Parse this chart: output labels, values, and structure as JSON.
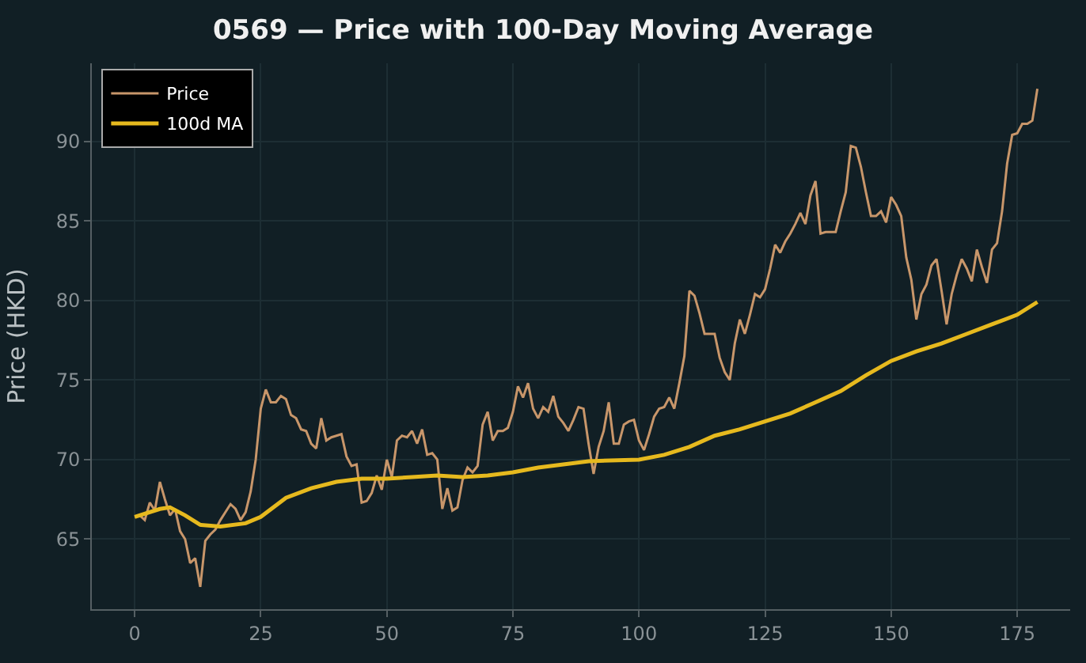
{
  "chart_data": {
    "type": "line",
    "title": "0569 — Price with 100-Day Moving Average",
    "ylabel": "Price (HKD)",
    "xlim": [
      -8.5,
      185.5
    ],
    "xticks": [
      0,
      25,
      50,
      75,
      100,
      125,
      150,
      175
    ],
    "ylim": [
      60.6,
      94.9
    ],
    "yticks": [
      65,
      70,
      75,
      80,
      85,
      90
    ],
    "grid": true,
    "legend": "top left",
    "marker": "none",
    "line_style": "solid",
    "series": [
      {
        "name": "Price",
        "color": "#c8966a",
        "x": [
          0,
          1,
          2,
          3,
          4,
          5,
          6,
          7,
          8,
          9,
          10,
          11,
          12,
          13,
          14,
          15,
          16,
          17,
          18,
          19,
          20,
          21,
          22,
          23,
          24,
          25,
          26,
          27,
          28,
          29,
          30,
          31,
          32,
          33,
          34,
          35,
          36,
          37,
          38,
          39,
          40,
          41,
          42,
          43,
          44,
          45,
          46,
          47,
          48,
          49,
          50,
          51,
          52,
          53,
          54,
          55,
          56,
          57,
          58,
          59,
          60,
          61,
          62,
          63,
          64,
          65,
          66,
          67,
          68,
          69,
          70,
          71,
          72,
          73,
          74,
          75,
          76,
          77,
          78,
          79,
          80,
          81,
          82,
          83,
          84,
          85,
          86,
          87,
          88,
          89,
          90,
          91,
          92,
          93,
          94,
          95,
          96,
          97,
          98,
          99,
          100,
          101,
          102,
          103,
          104,
          105,
          106,
          107,
          108,
          109,
          110,
          111,
          112,
          113,
          114,
          115,
          116,
          117,
          118,
          119,
          120,
          121,
          122,
          123,
          124,
          125,
          126,
          127,
          128,
          129,
          130,
          131,
          132,
          133,
          134,
          135,
          136,
          137,
          138,
          139,
          140,
          141,
          142,
          143,
          144,
          145,
          146,
          147,
          148,
          149,
          150,
          151,
          152,
          153,
          154,
          155,
          156,
          157,
          158,
          159,
          160,
          161,
          162,
          163,
          164,
          165,
          166,
          167,
          168,
          169,
          170,
          171,
          172,
          173,
          174,
          175,
          176,
          177,
          178,
          179
        ],
        "values": [
          66.4,
          66.5,
          66.2,
          67.3,
          66.8,
          68.6,
          67.5,
          66.5,
          66.9,
          65.5,
          65.0,
          63.5,
          63.8,
          62.0,
          64.9,
          65.3,
          65.6,
          66.2,
          66.7,
          67.2,
          66.9,
          66.2,
          66.7,
          68.0,
          70.0,
          73.2,
          74.4,
          73.6,
          73.6,
          74.0,
          73.8,
          72.8,
          72.6,
          71.9,
          71.8,
          71.0,
          70.7,
          72.6,
          71.2,
          71.4,
          71.5,
          71.6,
          70.2,
          69.6,
          69.7,
          67.3,
          67.4,
          67.9,
          69.0,
          68.1,
          70.0,
          68.9,
          71.2,
          71.5,
          71.4,
          71.8,
          71.0,
          71.9,
          70.3,
          70.4,
          70.0,
          66.9,
          68.2,
          66.8,
          67.0,
          68.7,
          69.5,
          69.2,
          69.6,
          72.2,
          73.0,
          71.2,
          71.8,
          71.8,
          72.0,
          73.0,
          74.6,
          73.9,
          74.8,
          73.2,
          72.6,
          73.3,
          73.0,
          74.0,
          72.7,
          72.3,
          71.8,
          72.5,
          73.3,
          73.2,
          71.0,
          69.1,
          70.8,
          71.8,
          73.6,
          71.0,
          71.0,
          72.2,
          72.4,
          72.5,
          71.2,
          70.6,
          71.6,
          72.7,
          73.2,
          73.3,
          73.9,
          73.2,
          74.8,
          76.5,
          80.6,
          80.3,
          79.2,
          77.9,
          77.9,
          77.9,
          76.4,
          75.5,
          75.0,
          77.3,
          78.8,
          77.9,
          79.1,
          80.4,
          80.2,
          80.7,
          82.0,
          83.5,
          83.0,
          83.7,
          84.2,
          84.8,
          85.5,
          84.8,
          86.6,
          87.5,
          84.2,
          84.3,
          84.3,
          84.3,
          85.6,
          86.8,
          89.7,
          89.6,
          88.4,
          86.8,
          85.3,
          85.3,
          85.6,
          84.9,
          86.5,
          86.0,
          85.3,
          82.7,
          81.3,
          78.8,
          80.4,
          81.0,
          82.2,
          82.6,
          80.6,
          78.5,
          80.4,
          81.6,
          82.6,
          82.0,
          81.2,
          83.2,
          82.1,
          81.1,
          83.2,
          83.6,
          85.6,
          88.6,
          90.4,
          90.5,
          91.1,
          91.1,
          91.3,
          93.3
        ]
      },
      {
        "name": "100d MA",
        "color": "#e6b91e",
        "x": [
          0,
          5,
          7,
          10,
          13,
          17,
          22,
          25,
          30,
          35,
          40,
          45,
          50,
          55,
          60,
          65,
          70,
          75,
          80,
          90,
          100,
          105,
          110,
          115,
          120,
          125,
          130,
          135,
          140,
          145,
          150,
          155,
          160,
          165,
          170,
          175,
          179
        ],
        "values": [
          66.4,
          66.9,
          67.0,
          66.5,
          65.9,
          65.8,
          66.0,
          66.4,
          67.6,
          68.2,
          68.6,
          68.8,
          68.8,
          68.9,
          69.0,
          68.9,
          69.0,
          69.2,
          69.5,
          69.9,
          70.0,
          70.3,
          70.8,
          71.5,
          71.9,
          72.4,
          72.9,
          73.6,
          74.3,
          75.3,
          76.2,
          76.8,
          77.3,
          77.9,
          78.5,
          79.1,
          79.9
        ]
      }
    ]
  }
}
